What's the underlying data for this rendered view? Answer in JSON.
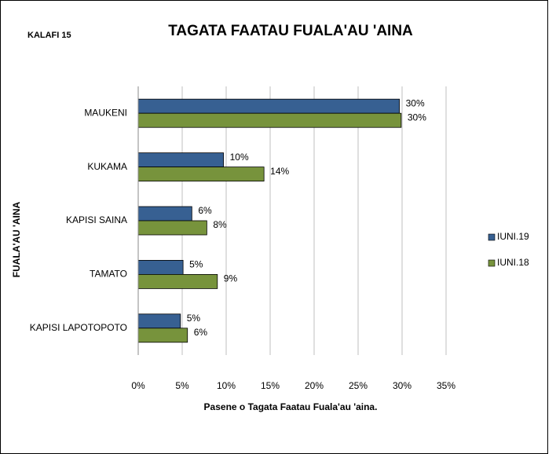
{
  "chart_data": {
    "type": "bar",
    "orientation": "horizontal",
    "label": "KALAFI 15",
    "title": "TAGATA FAATAU FUALA'AU 'AINA",
    "xlabel": "Pasene o Tagata Faatau Fuala'au 'aina.",
    "ylabel": "FUALA'AU 'AINA",
    "categories": [
      "MAUKENI",
      "KUKAMA",
      "KAPISI SAINA",
      "TAMATO",
      "KAPISI LAPOTOPOTO"
    ],
    "series": [
      {
        "name": "IUNI.19",
        "color": "#376092",
        "values": [
          29.7,
          9.7,
          6.1,
          5.1,
          4.8
        ],
        "value_labels": [
          "30%",
          "10%",
          "6%",
          "5%",
          "5%"
        ]
      },
      {
        "name": "IUNI.18",
        "color": "#77933c",
        "values": [
          29.9,
          14.3,
          7.8,
          9.0,
          5.6
        ],
        "value_labels": [
          "30%",
          "14%",
          "8%",
          "9%",
          "6%"
        ]
      }
    ],
    "xlim": [
      0,
      35
    ],
    "xticks": [
      {
        "value": 0,
        "label": "0%"
      },
      {
        "value": 5,
        "label": "5%"
      },
      {
        "value": 10,
        "label": "10%"
      },
      {
        "value": 15,
        "label": "15%"
      },
      {
        "value": 20,
        "label": "20%"
      },
      {
        "value": 25,
        "label": "25%"
      },
      {
        "value": 30,
        "label": "30%"
      },
      {
        "value": 35,
        "label": "35%"
      }
    ],
    "grid": true,
    "legend": "right"
  }
}
